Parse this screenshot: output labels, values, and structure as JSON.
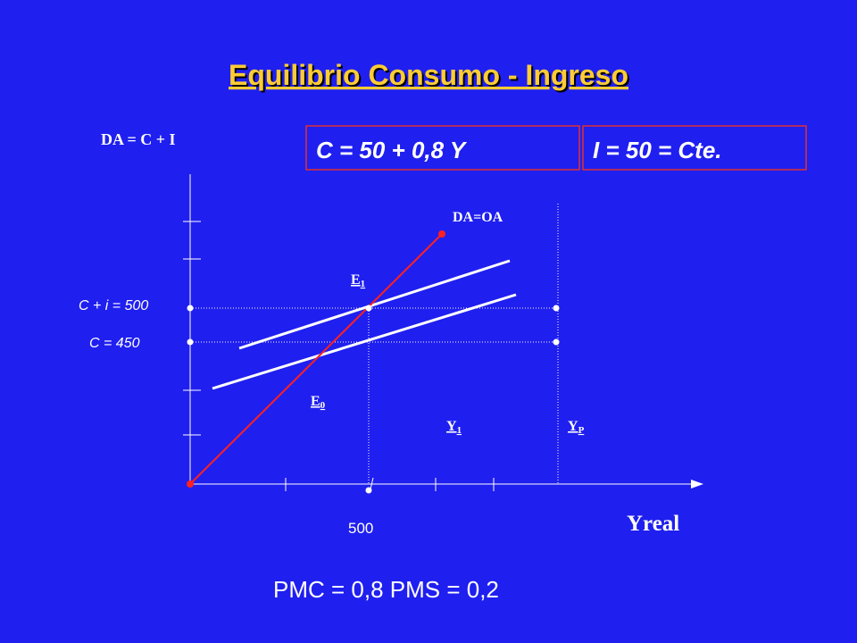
{
  "title": "Equilibrio Consumo - Ingreso",
  "y_axis_label": "DA = C + I",
  "x_axis_label": "Yreal",
  "boxes": [
    "C = 50 + 0,8 Y",
    "I = 50 = Cte."
  ],
  "lines": {
    "da_oa": "DA=OA"
  },
  "points": {
    "e1": {
      "main": "E",
      "sub": "1"
    },
    "e0": {
      "main": "E",
      "sub": "0"
    }
  },
  "x_markers": {
    "y1": {
      "main": "Y",
      "sub": "1"
    },
    "yp": {
      "main": "Y",
      "sub": "P"
    },
    "value": "500"
  },
  "y_markers": {
    "ci": "C + i = 500",
    "c": "C = 450"
  },
  "footer": "PMC = 0,8 PMS = 0,2"
}
